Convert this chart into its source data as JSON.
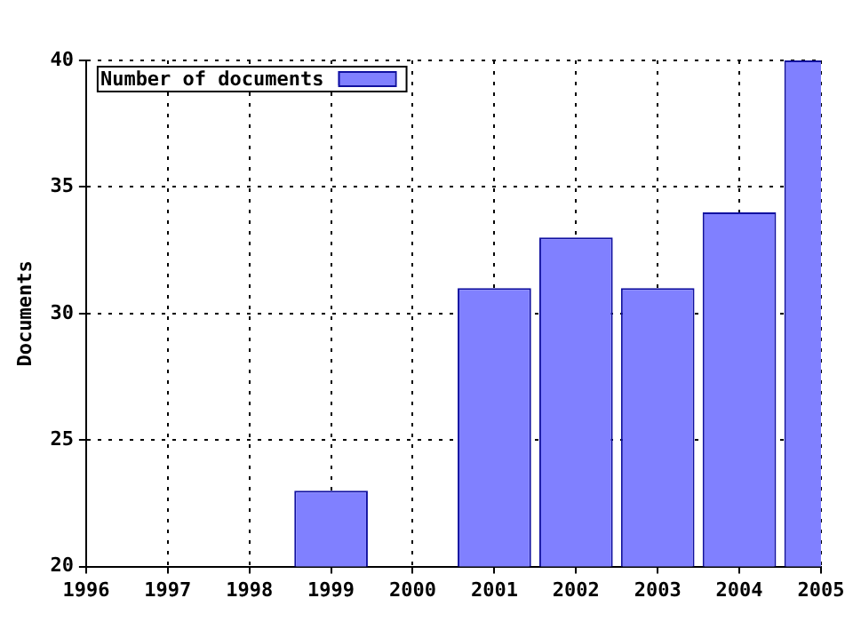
{
  "chart_data": {
    "type": "bar",
    "ylabel": "Documents",
    "categories": [
      "1996",
      "1997",
      "1998",
      "1999",
      "2000",
      "2001",
      "2002",
      "2003",
      "2004",
      "2005"
    ],
    "series": [
      {
        "name": "Number of documents",
        "color": "#8080ff",
        "values": [
          null,
          null,
          null,
          23,
          null,
          31,
          33,
          31,
          34,
          40
        ]
      }
    ],
    "ylim": [
      20,
      40
    ],
    "yticks": [
      20,
      25,
      30,
      35,
      40
    ],
    "grid": true,
    "legend": "top left"
  }
}
